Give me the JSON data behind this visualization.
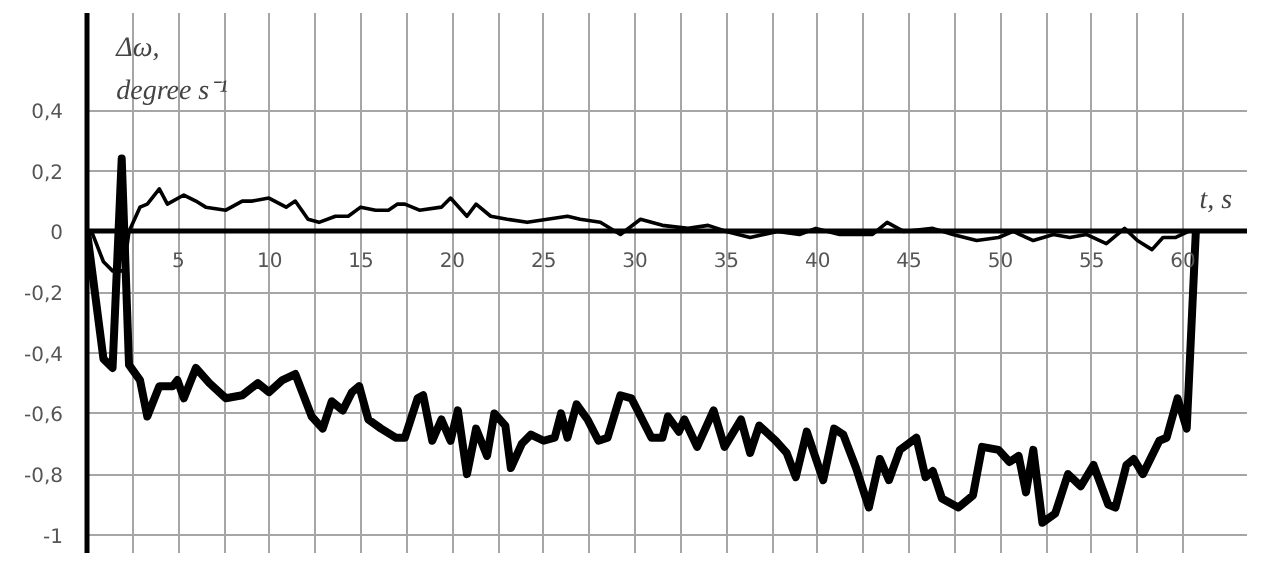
{
  "chart_data": {
    "type": "line",
    "ylabel": "Δω,\ndegree s⁻¹",
    "xlabel": "t, s",
    "xlim": [
      0,
      63.5
    ],
    "ylim": [
      -1.06,
      0.72
    ],
    "xticks": [
      {
        "value": 0,
        "label": null
      },
      {
        "value": 2.5,
        "label": null
      },
      5,
      {
        "value": 7.5,
        "label": null
      },
      10,
      {
        "value": 12.5,
        "label": null
      },
      15,
      {
        "value": 17.5,
        "label": null
      },
      20,
      {
        "value": 22.5,
        "label": null
      },
      25,
      {
        "value": 27.5,
        "label": null
      },
      30,
      {
        "value": 32.5,
        "label": null
      },
      35,
      {
        "value": 37.5,
        "label": null
      },
      40,
      {
        "value": 42.5,
        "label": null
      },
      45,
      {
        "value": 47.5,
        "label": null
      },
      50,
      {
        "value": 52.5,
        "label": null
      },
      55,
      {
        "value": 57.5,
        "label": null
      },
      60
    ],
    "yticks": [
      {
        "value": -1,
        "label": "-1"
      },
      {
        "value": -0.8,
        "label": "-0,8"
      },
      {
        "value": -0.6,
        "label": "-0,6"
      },
      {
        "value": -0.4,
        "label": "-0,4"
      },
      {
        "value": -0.2,
        "label": "-0,2"
      },
      0,
      {
        "value": 0.2,
        "label": "0,2"
      },
      {
        "value": 0.4,
        "label": "0,4"
      }
    ],
    "grid": true,
    "marker": "none",
    "line_style": "solid",
    "series": [
      {
        "color": "#000000",
        "x": [
          0.25,
          0.9,
          1.4,
          2,
          2.3,
          2.9,
          3.3,
          3.96,
          4.4,
          5.3,
          5.96,
          6.5,
          7.6,
          8.5,
          9.05,
          9.96,
          10.9,
          11.4,
          12.1,
          12.7,
          13.6,
          14.3,
          14.98,
          15.8,
          16.5,
          17,
          17.4,
          18.2,
          19.4,
          19.9,
          20.8,
          21.3,
          22.1,
          23,
          24.1,
          25.2,
          26.3,
          27,
          28.1,
          29.2,
          30.3,
          31.5,
          32.9,
          34,
          35,
          36.3,
          37.8,
          39,
          39.9,
          41.2,
          43,
          43.8,
          44.7,
          46.3,
          47.4,
          48.7,
          49.9,
          50.7,
          51.8,
          52.9,
          53.8,
          54.7,
          55.8,
          56.8,
          57.5,
          58.3,
          58.9,
          59.6,
          60.3
        ],
        "values": [
          0,
          -0.1,
          -0.13,
          -0.13,
          0,
          0.08,
          0.09,
          0.14,
          0.09,
          0.12,
          0.1,
          0.08,
          0.07,
          0.1,
          0.1,
          0.11,
          0.08,
          0.1,
          0.04,
          0.03,
          0.05,
          0.05,
          0.08,
          0.07,
          0.07,
          0.09,
          0.09,
          0.07,
          0.08,
          0.11,
          0.05,
          0.09,
          0.05,
          0.04,
          0.03,
          0.04,
          0.05,
          0.04,
          0.03,
          -0.01,
          0.04,
          0.02,
          0.01,
          0.02,
          0,
          -0.02,
          0,
          -0.01,
          0.01,
          -0.01,
          -0.01,
          0.03,
          0,
          0.01,
          -0.01,
          -0.03,
          -0.02,
          0,
          -0.03,
          -0.01,
          -0.02,
          -0.01,
          -0.04,
          0.01,
          -0.03,
          -0.06,
          -0.02,
          -0.02,
          0
        ]
      },
      {
        "color": "#000000",
        "x": [
          0,
          0.9,
          1.4,
          1.9,
          2.3,
          2.9,
          3.3,
          3.96,
          4.7,
          4.95,
          5.3,
          5.96,
          6.7,
          7.6,
          8.5,
          9.35,
          9.96,
          10.7,
          11.4,
          12.3,
          12.9,
          13.4,
          14,
          14.5,
          14.9,
          15.4,
          16.1,
          16.9,
          17.4,
          18.1,
          18.4,
          18.9,
          19.4,
          19.9,
          20.3,
          20.8,
          21.3,
          21.9,
          22.3,
          22.9,
          23.2,
          23.8,
          24.3,
          25,
          25.6,
          25.95,
          26.3,
          26.8,
          27.4,
          28,
          28.5,
          29.2,
          29.8,
          30.9,
          31.5,
          31.8,
          32.4,
          32.7,
          33.4,
          34.3,
          34.9,
          35.8,
          36.3,
          36.8,
          37.7,
          38.3,
          38.8,
          39.4,
          40.3,
          40.9,
          41.4,
          42.1,
          42.8,
          43.4,
          43.9,
          44.5,
          45.4,
          45.9,
          46.3,
          46.8,
          47.7,
          48.5,
          49,
          49.9,
          50.5,
          51,
          51.4,
          51.8,
          52.3,
          53,
          53.7,
          54.4,
          55.1,
          55.9,
          56.3,
          56.9,
          57.3,
          57.8,
          58.7,
          59.1,
          59.7,
          60.2,
          60.7
        ],
        "values": [
          0,
          -0.42,
          -0.45,
          0.24,
          -0.44,
          -0.49,
          -0.61,
          -0.51,
          -0.51,
          -0.49,
          -0.55,
          -0.45,
          -0.5,
          -0.55,
          -0.54,
          -0.5,
          -0.53,
          -0.49,
          -0.47,
          -0.61,
          -0.65,
          -0.56,
          -0.59,
          -0.53,
          -0.51,
          -0.62,
          -0.65,
          -0.68,
          -0.68,
          -0.55,
          -0.54,
          -0.69,
          -0.62,
          -0.69,
          -0.59,
          -0.8,
          -0.65,
          -0.74,
          -0.6,
          -0.64,
          -0.78,
          -0.7,
          -0.67,
          -0.69,
          -0.68,
          -0.6,
          -0.68,
          -0.57,
          -0.62,
          -0.69,
          -0.68,
          -0.54,
          -0.55,
          -0.68,
          -0.68,
          -0.61,
          -0.66,
          -0.62,
          -0.71,
          -0.59,
          -0.71,
          -0.62,
          -0.73,
          -0.64,
          -0.69,
          -0.73,
          -0.81,
          -0.66,
          -0.82,
          -0.65,
          -0.67,
          -0.78,
          -0.91,
          -0.75,
          -0.82,
          -0.72,
          -0.68,
          -0.81,
          -0.79,
          -0.88,
          -0.91,
          -0.87,
          -0.71,
          -0.72,
          -0.76,
          -0.74,
          -0.86,
          -0.72,
          -0.96,
          -0.93,
          -0.8,
          -0.84,
          -0.77,
          -0.9,
          -0.91,
          -0.77,
          -0.75,
          -0.8,
          -0.69,
          -0.68,
          -0.55,
          -0.65,
          0
        ]
      }
    ]
  }
}
